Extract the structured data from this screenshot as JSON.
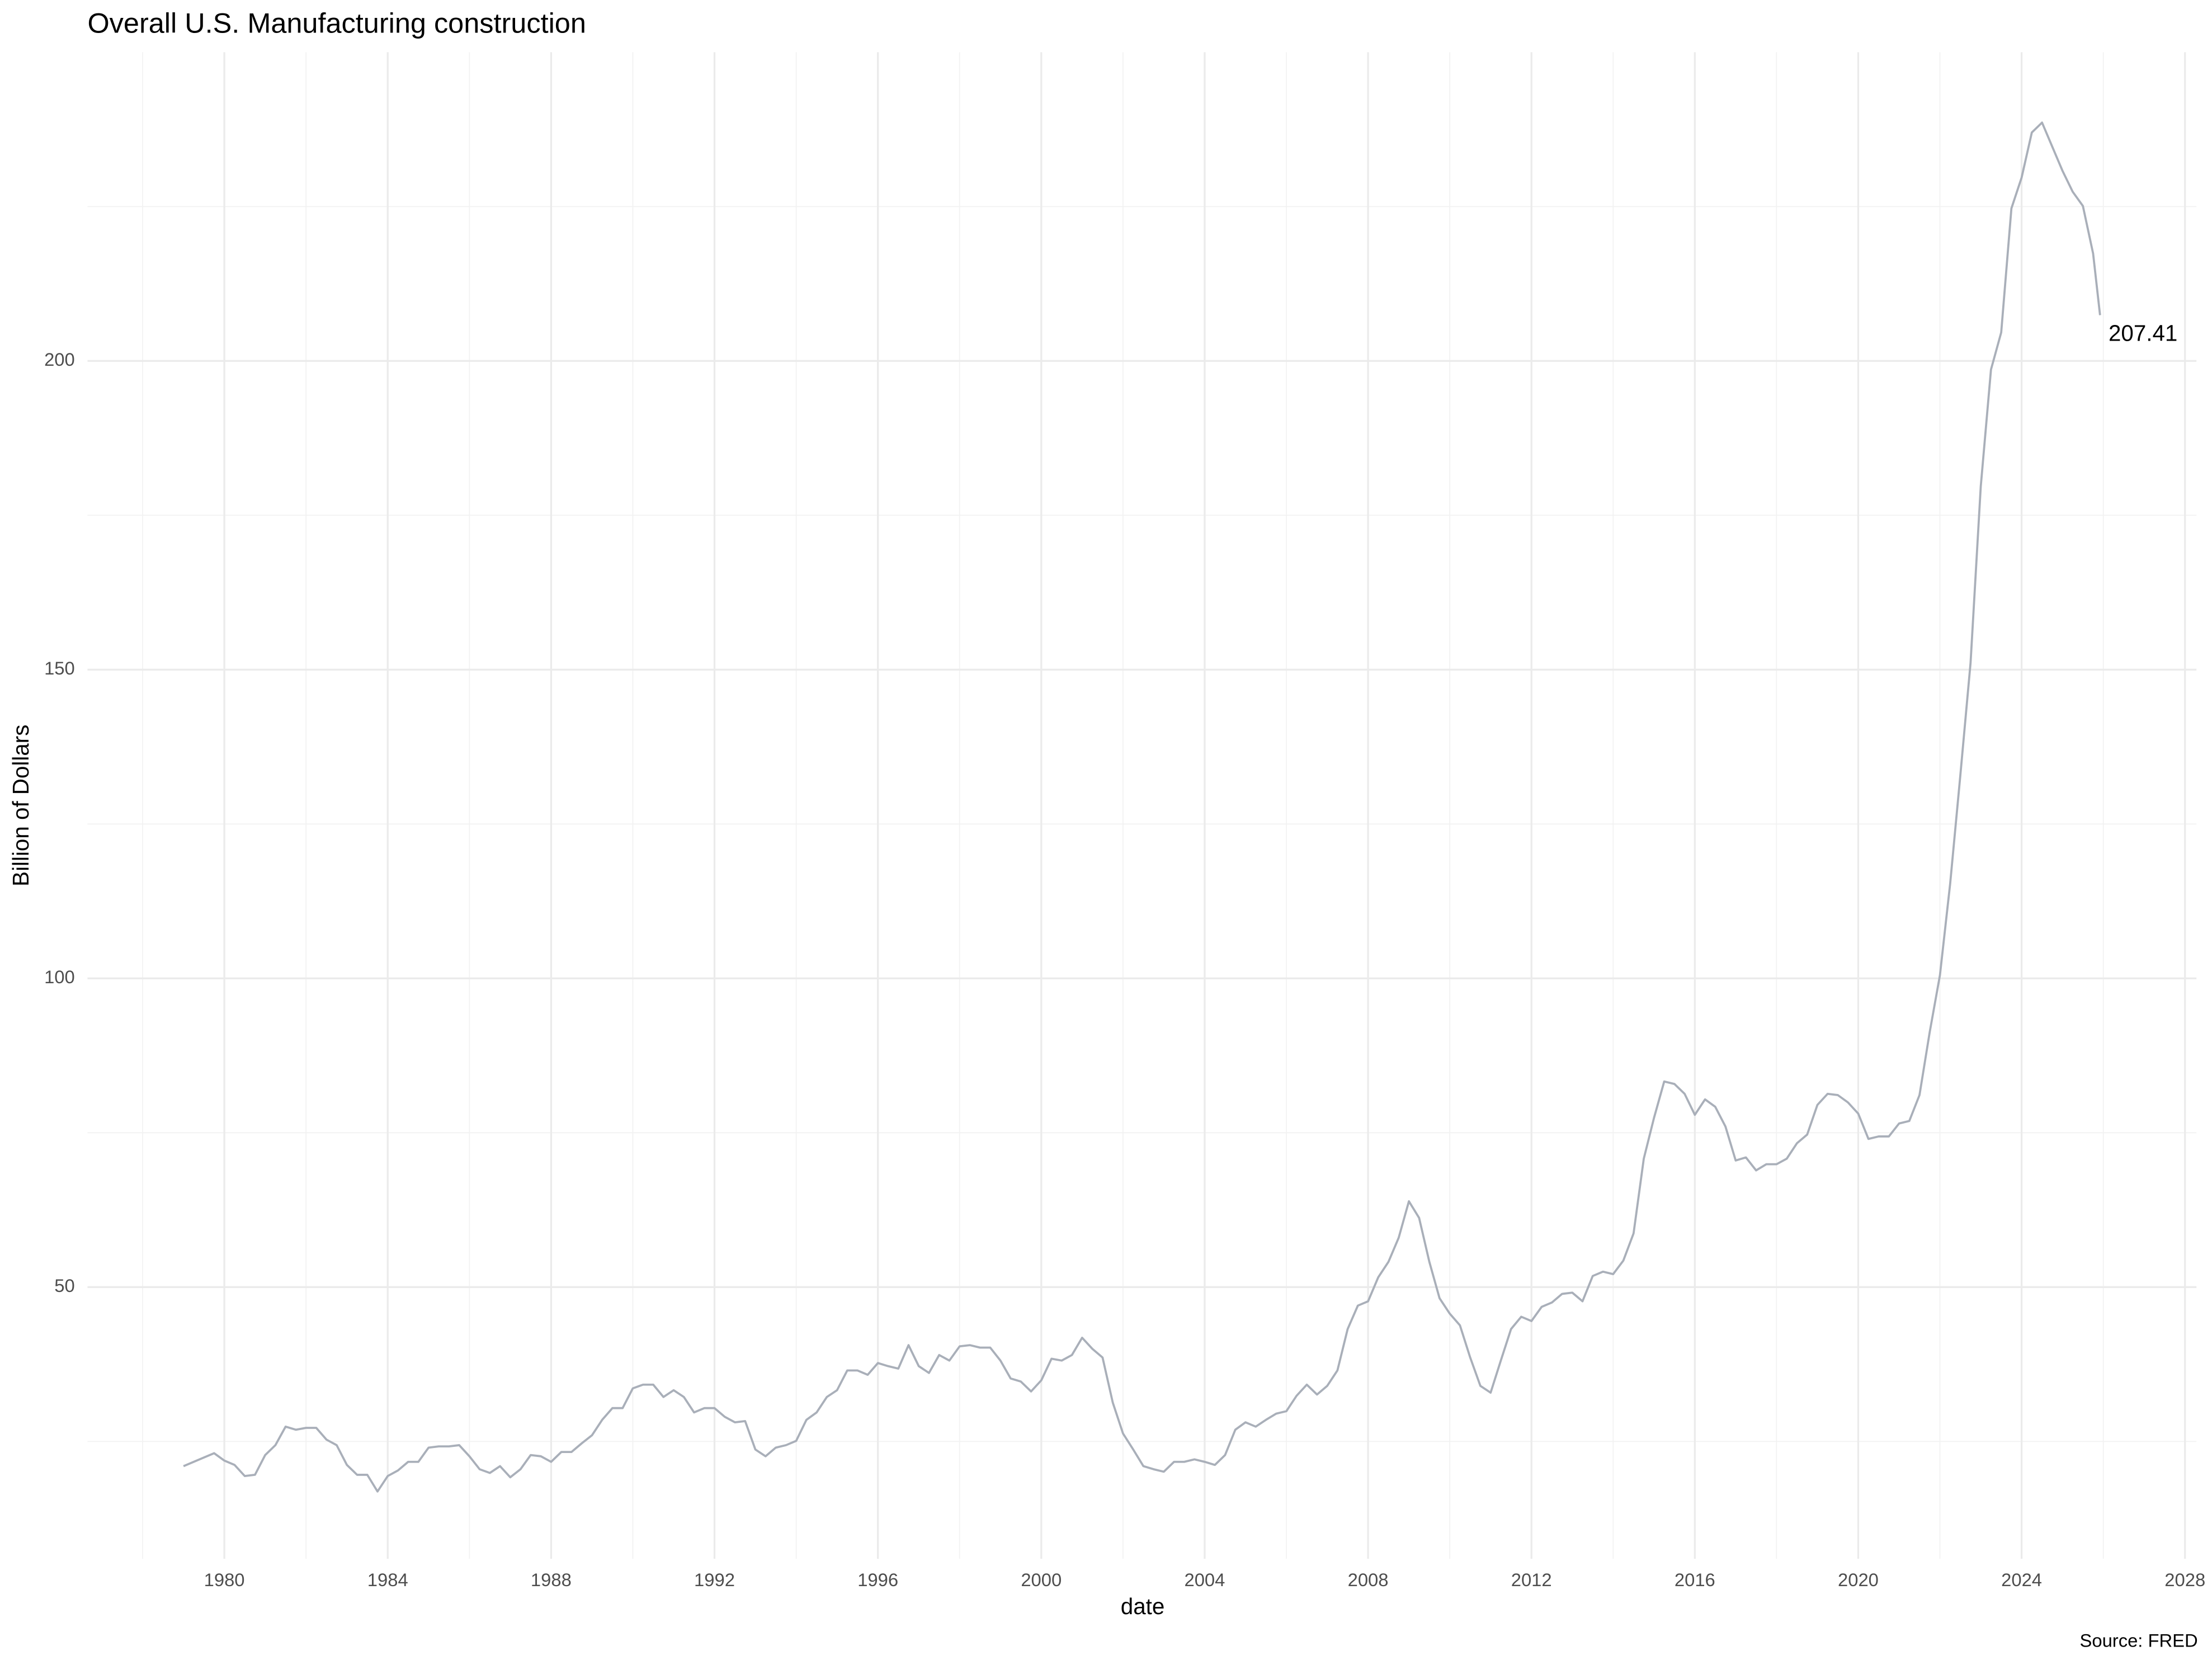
{
  "chart_data": {
    "type": "line",
    "title": "Overall U.S. Manufacturing construction",
    "y_label": "Billion of Dollars",
    "x_label": "date",
    "caption": "Source: FRED",
    "annotation": "207.41",
    "grid": true,
    "xlim": [
      1976.65,
      2028.28
    ],
    "ylim": [
      6,
      250
    ],
    "xticks": [
      1980,
      1984,
      1988,
      1992,
      1996,
      2000,
      2004,
      2008,
      2012,
      2016,
      2020,
      2024,
      2028
    ],
    "yticks": [
      50,
      100,
      150,
      200
    ],
    "x": [
      1979,
      1979.25,
      1979.5,
      1979.75,
      1980,
      1980.25,
      1980.5,
      1980.75,
      1981,
      1981.25,
      1981.5,
      1981.75,
      1982,
      1982.25,
      1982.5,
      1982.75,
      1983,
      1983.25,
      1983.5,
      1983.75,
      1984,
      1984.25,
      1984.5,
      1984.75,
      1985,
      1985.25,
      1985.5,
      1985.75,
      1986,
      1986.25,
      1986.5,
      1986.75,
      1987,
      1987.25,
      1987.5,
      1987.75,
      1988,
      1988.25,
      1988.5,
      1988.75,
      1989,
      1989.25,
      1989.5,
      1989.75,
      1990,
      1990.25,
      1990.5,
      1990.75,
      1991,
      1991.25,
      1991.5,
      1991.75,
      1992,
      1992.25,
      1992.5,
      1992.75,
      1993,
      1993.25,
      1993.5,
      1993.75,
      1994,
      1994.25,
      1994.5,
      1994.75,
      1995,
      1995.25,
      1995.5,
      1995.75,
      1996,
      1996.25,
      1996.5,
      1996.75,
      1997,
      1997.25,
      1997.5,
      1997.75,
      1998,
      1998.25,
      1998.5,
      1998.75,
      1999,
      1999.25,
      1999.5,
      1999.75,
      2000,
      2000.25,
      2000.5,
      2000.75,
      2001,
      2001.25,
      2001.5,
      2001.75,
      2002,
      2002.25,
      2002.5,
      2002.75,
      2003,
      2003.25,
      2003.5,
      2003.75,
      2004,
      2004.25,
      2004.5,
      2004.75,
      2005,
      2005.25,
      2005.5,
      2005.75,
      2006,
      2006.25,
      2006.5,
      2006.75,
      2007,
      2007.25,
      2007.5,
      2007.75,
      2008,
      2008.25,
      2008.5,
      2008.75,
      2009,
      2009.25,
      2009.5,
      2009.75,
      2010,
      2010.25,
      2010.5,
      2010.75,
      2011,
      2011.25,
      2011.5,
      2011.75,
      2012,
      2012.25,
      2012.5,
      2012.75,
      2013,
      2013.25,
      2013.5,
      2013.75,
      2014,
      2014.25,
      2014.5,
      2014.75,
      2015,
      2015.25,
      2015.5,
      2015.75,
      2016,
      2016.25,
      2016.5,
      2016.75,
      2017,
      2017.25,
      2017.5,
      2017.75,
      2018,
      2018.25,
      2018.5,
      2018.75,
      2019,
      2019.25,
      2019.5,
      2019.75,
      2020,
      2020.25,
      2020.5,
      2020.75,
      2021,
      2021.25,
      2021.5,
      2021.75,
      2022,
      2022.25,
      2022.5,
      2022.75,
      2023,
      2023.25,
      2023.5,
      2023.75,
      2024,
      2024.25,
      2024.5,
      2024.75,
      2025,
      2025.25,
      2025.5,
      2025.75,
      2025.92
    ],
    "series": [
      {
        "name": "Overall U.S. Manufacturing construction",
        "color": "#a9afb9",
        "values": [
          21,
          21.7,
          22.4,
          23.1,
          21.9,
          21.2,
          19.4,
          19.6,
          22.8,
          24.4,
          27.4,
          26.9,
          27.2,
          27.2,
          25.3,
          24.4,
          21.2,
          19.6,
          19.6,
          16.9,
          19.4,
          20.3,
          21.7,
          21.7,
          24,
          24.2,
          24.2,
          24.4,
          22.6,
          20.5,
          19.9,
          21,
          19.2,
          20.5,
          22.8,
          22.6,
          21.7,
          23.3,
          23.3,
          24.7,
          26,
          28.5,
          30.4,
          30.4,
          33.6,
          34.2,
          34.2,
          32.2,
          33.3,
          32.2,
          29.7,
          30.4,
          30.4,
          29,
          28.1,
          28.3,
          23.7,
          22.6,
          24,
          24.4,
          25.1,
          28.5,
          29.7,
          32.2,
          33.3,
          36.5,
          36.5,
          35.8,
          37.7,
          37.2,
          36.8,
          40.6,
          37.2,
          36.1,
          39,
          38.1,
          40.4,
          40.6,
          40.2,
          40.2,
          38.1,
          35.2,
          34.7,
          33.1,
          34.9,
          38.4,
          38.1,
          39,
          41.8,
          40,
          38.6,
          31.3,
          26.3,
          23.7,
          21,
          20.5,
          20.1,
          21.7,
          21.7,
          22.1,
          21.7,
          21.2,
          22.8,
          26.9,
          28.1,
          27.4,
          28.5,
          29.5,
          29.9,
          32.4,
          34.2,
          32.6,
          34,
          36.5,
          43.2,
          47,
          47.7,
          51.6,
          54.1,
          58,
          63.9,
          61.2,
          54.1,
          48.2,
          45.7,
          43.8,
          38.6,
          34,
          32.9,
          38.1,
          43.2,
          45.2,
          44.5,
          46.8,
          47.5,
          48.9,
          49.1,
          47.7,
          51.8,
          52.5,
          52.1,
          54.3,
          58.7,
          70.8,
          77.4,
          83.3,
          82.9,
          81.3,
          77.9,
          80.4,
          79.2,
          76,
          70.5,
          71,
          68.9,
          69.9,
          69.9,
          70.8,
          73.3,
          74.7,
          79.5,
          81.3,
          81.1,
          79.9,
          78.1,
          74,
          74.4,
          74.4,
          76.5,
          76.9,
          81.1,
          91.3,
          100.5,
          115.3,
          132.9,
          151.1,
          179.7,
          198.6,
          204.6,
          224.7,
          229.7,
          237,
          238.6,
          234.7,
          230.8,
          227.4,
          225.1,
          217.4,
          207.41
        ]
      }
    ]
  }
}
